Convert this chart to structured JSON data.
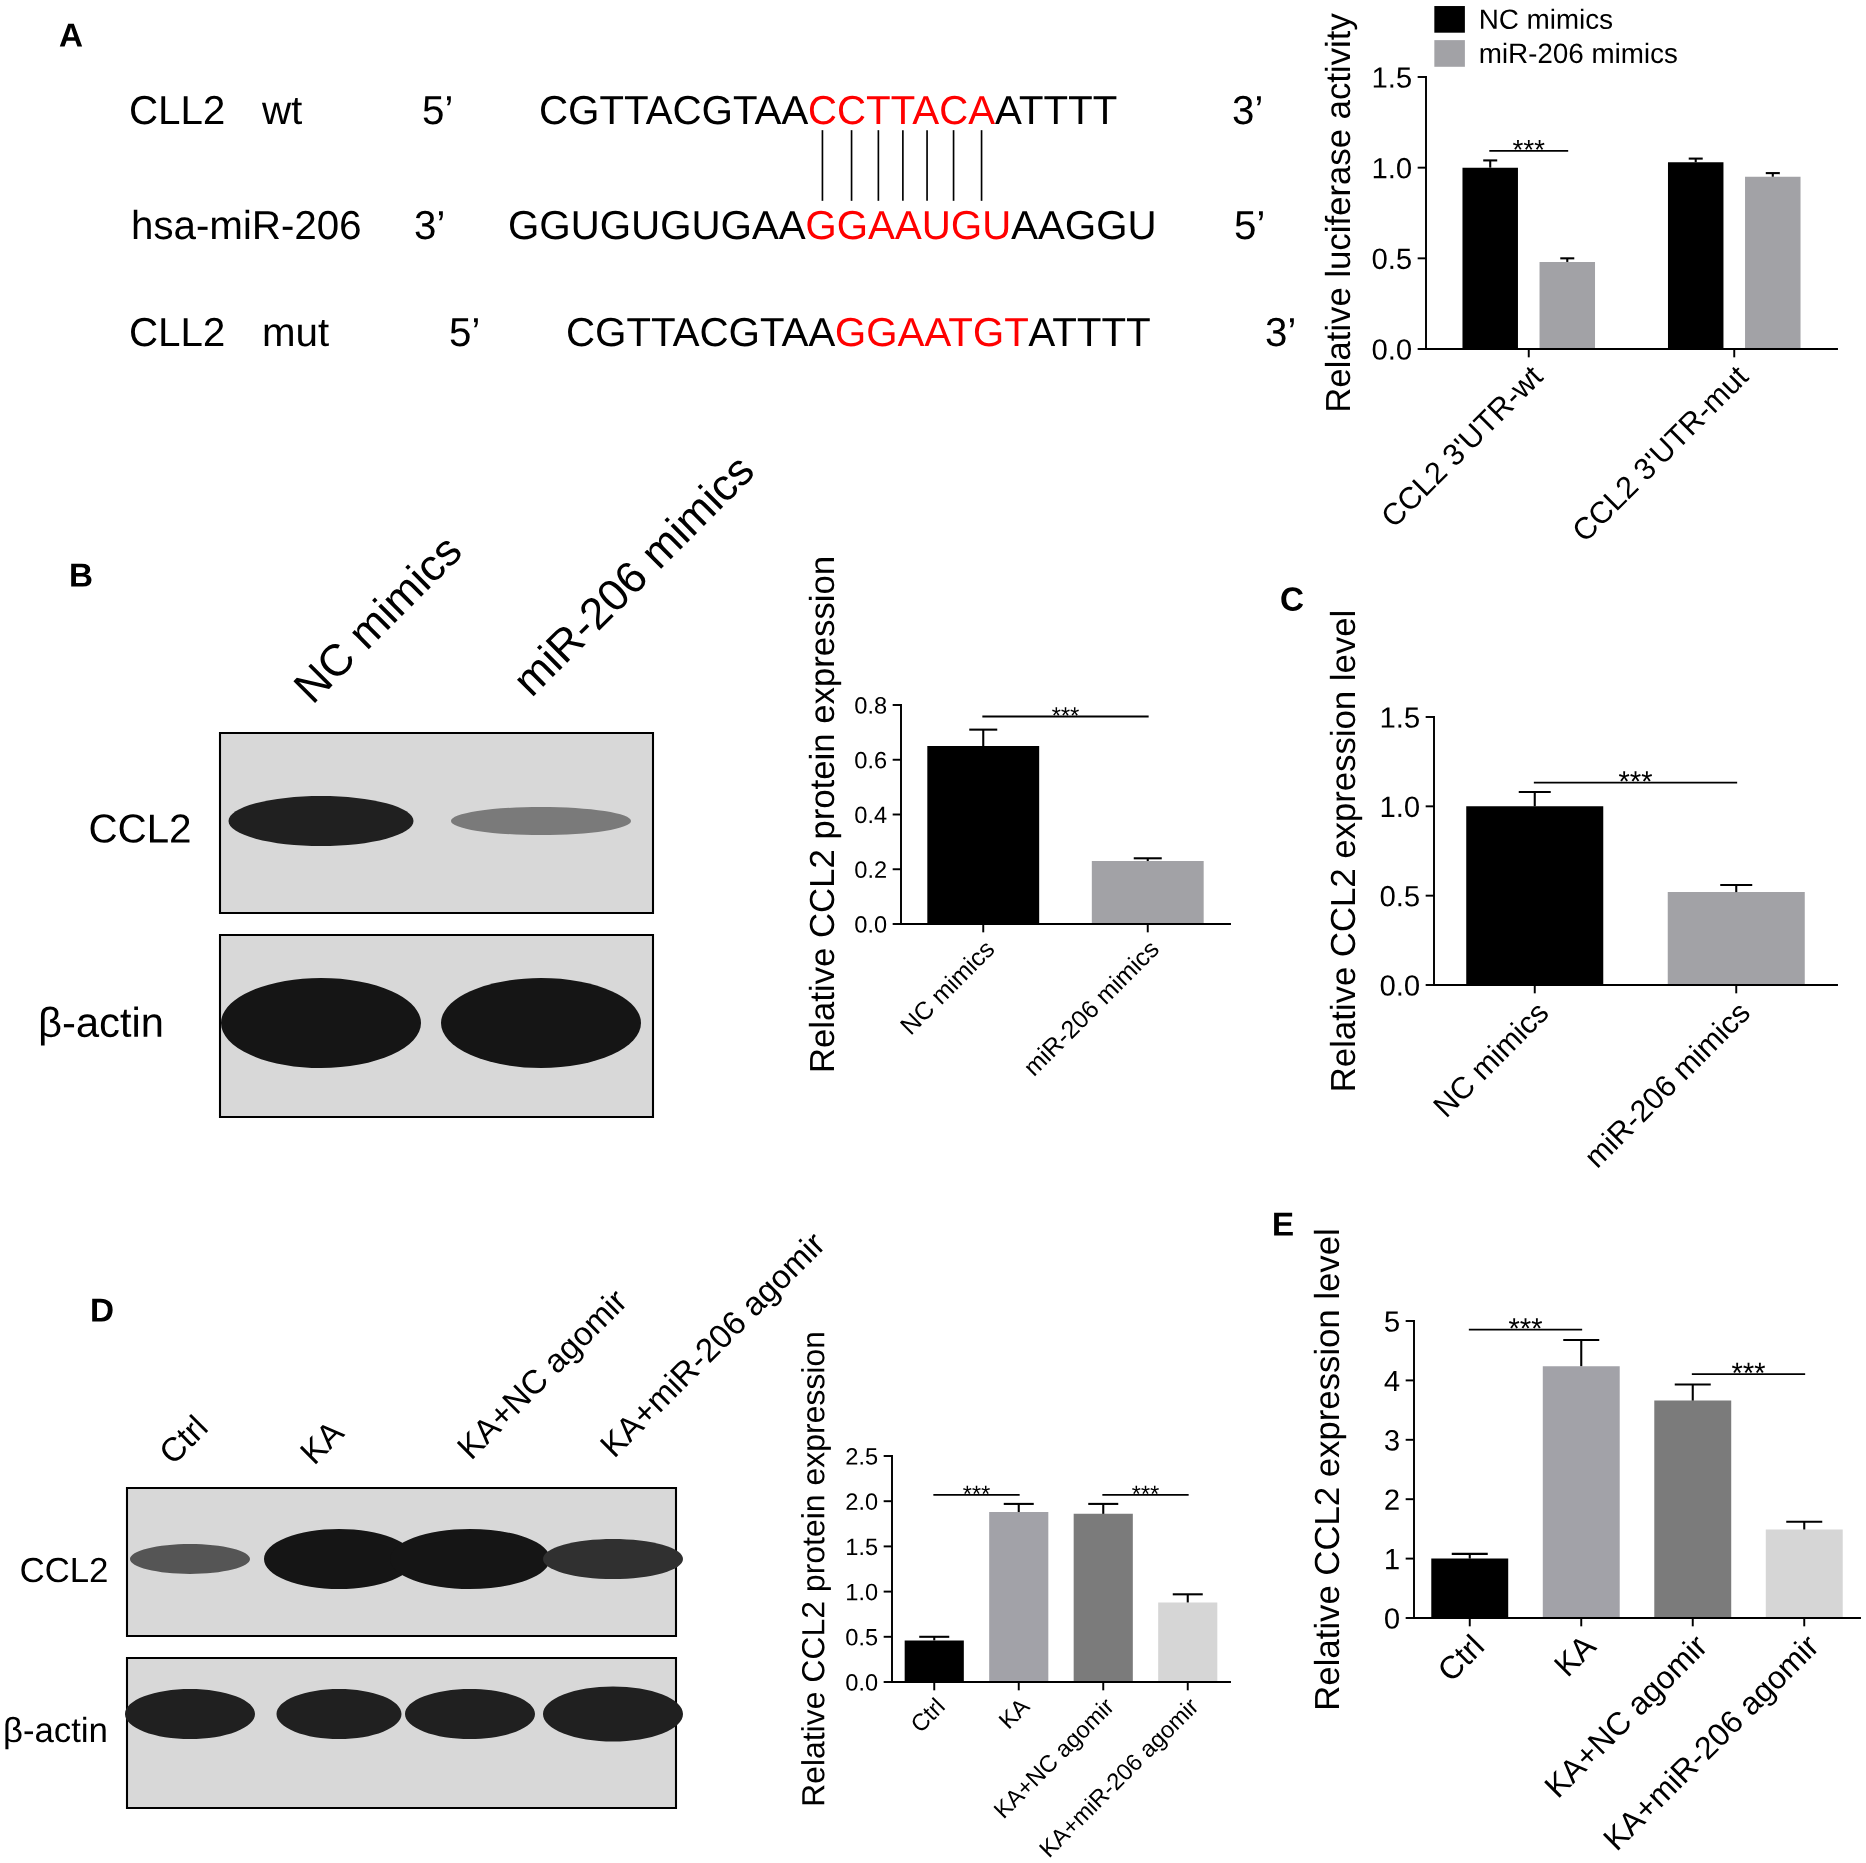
{
  "chart_data": [
    {
      "type": "other",
      "title": "A",
      "annotations": [
        "CLL2",
        "wt",
        "5’",
        "CGTTACGTAA",
        "CCTTACA",
        "ATTTT",
        "3’",
        "hsa-miR-206",
        "3’",
        "GGUGUGUGAA",
        "GGAAUGU",
        "AAGGU",
        "5’",
        "CLL2",
        "mut",
        "5’",
        "CGTTACGTAA",
        "GGAATGT",
        "ATTTT",
        "3’"
      ],
      "colors": [
        "#000000",
        "#000000",
        "#000000",
        "#000000",
        "#ff0000",
        "#000000",
        "#000000",
        "#000000",
        "#000000",
        "#000000",
        "#ff0000",
        "#000000",
        "#000000",
        "#000000",
        "#000000",
        "#000000",
        "#000000",
        "#ff0000",
        "#000000",
        "#000000"
      ]
    },
    {
      "type": "bar",
      "categories": [
        "CCL2 3'UTR-wt",
        "CCL2 3'UTR-mut"
      ],
      "series": [
        {
          "name": "NC mimics",
          "color": "#000000",
          "values": [
            1.0,
            1.03
          ],
          "errors": [
            [
              1.0,
              1.04
            ],
            [
              1.03,
              1.05
            ]
          ]
        },
        {
          "name": "miR-206 mimics",
          "color": "#a2a2a6",
          "values": [
            0.48,
            0.95
          ],
          "errors": [
            [
              0.48,
              0.5
            ],
            [
              0.95,
              0.97
            ]
          ]
        }
      ],
      "ylabel": "Relative luciferase activity",
      "ylim": [
        0,
        1.5
      ],
      "yticks": [
        {
          "value": 0,
          "label": "0.0"
        },
        0.5,
        {
          "value": 1,
          "label": "1.0"
        },
        1.5
      ],
      "legend": "top left",
      "annotations": [
        "***"
      ]
    },
    {
      "type": "other",
      "title": "B",
      "annotations": [
        "NC mimics",
        "miR-206 mimics",
        "CCL2",
        "β-actin"
      ]
    },
    {
      "type": "bar",
      "categories": [
        "NC mimics",
        "miR-206 mimics"
      ],
      "values": [
        0.65,
        0.23
      ],
      "colors": [
        "#000000",
        "#a2a2a6"
      ],
      "errors": [
        [
          0.65,
          0.71
        ],
        [
          0.23,
          0.24
        ]
      ],
      "ylabel": "Relative CCL2 protein expression",
      "ylim": [
        0,
        0.8
      ],
      "yticks": [
        {
          "value": 0,
          "label": "0.0"
        },
        0.2,
        0.4,
        0.6,
        0.8
      ],
      "annotations": [
        "***"
      ]
    },
    {
      "type": "bar",
      "title": "C",
      "categories": [
        "NC mimics",
        "miR-206 mimics"
      ],
      "values": [
        1.0,
        0.52
      ],
      "colors": [
        "#000000",
        "#a2a2a6"
      ],
      "errors": [
        [
          1.0,
          1.08
        ],
        [
          0.52,
          0.56
        ]
      ],
      "ylabel": "Relative CCL2 expression level",
      "ylim": [
        0,
        1.5
      ],
      "yticks": [
        {
          "value": 0,
          "label": "0.0"
        },
        0.5,
        {
          "value": 1,
          "label": "1.0"
        },
        1.5
      ],
      "annotations": [
        "***"
      ]
    },
    {
      "type": "other",
      "title": "D",
      "annotations": [
        "Ctrl",
        "KA",
        "KA+NC agomir",
        "KA+miR-206 agomir",
        "CCL2",
        "β-actin"
      ]
    },
    {
      "type": "bar",
      "categories": [
        "Ctrl",
        "KA",
        "KA+NC agomir",
        "KA+miR-206 agomir"
      ],
      "values": [
        0.46,
        1.88,
        1.86,
        0.88
      ],
      "colors": [
        "#000000",
        "#a2a2a8",
        "#7b7b7b",
        "#d6d6d6"
      ],
      "errors": [
        [
          0.46,
          0.5
        ],
        [
          1.88,
          1.97
        ],
        [
          1.86,
          1.97
        ],
        [
          0.88,
          0.97
        ]
      ],
      "ylabel": "Relative CCL2 protein expression",
      "ylim": [
        0,
        2.5
      ],
      "yticks": [
        {
          "value": 0,
          "label": "0.0"
        },
        0.5,
        {
          "value": 1,
          "label": "1.0"
        },
        1.5,
        {
          "value": 2,
          "label": "2.0"
        },
        2.5
      ],
      "annotations": [
        "***",
        "***"
      ]
    },
    {
      "type": "bar",
      "title": "E",
      "categories": [
        "Ctrl",
        "KA",
        "KA+NC agomir",
        "KA+miR-206 agomir"
      ],
      "values": [
        1.0,
        4.24,
        3.66,
        1.49
      ],
      "colors": [
        "#000000",
        "#a2a2a8",
        "#7b7b7b",
        "#d6d6d6"
      ],
      "errors": [
        [
          1.0,
          1.08
        ],
        [
          4.24,
          4.68
        ],
        [
          3.66,
          3.93
        ],
        [
          1.49,
          1.62
        ]
      ],
      "ylabel": "Relative CCL2 expression level",
      "ylim": [
        0,
        5
      ],
      "yticks": [
        0,
        1,
        2,
        3,
        4,
        5
      ],
      "annotations": [
        "***",
        "***"
      ]
    }
  ]
}
